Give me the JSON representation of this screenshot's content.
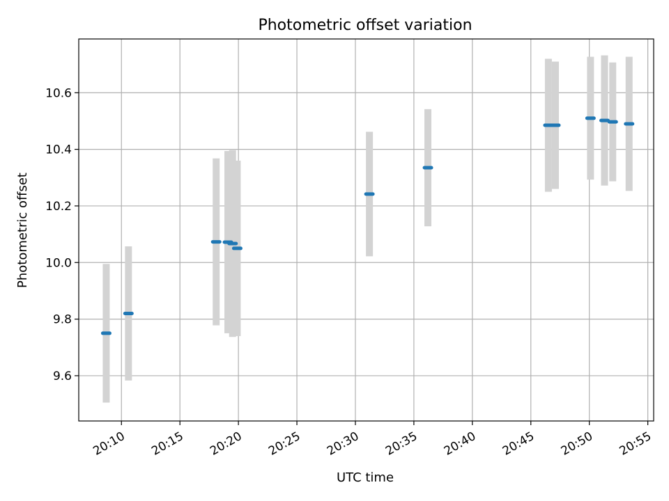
{
  "chart_data": {
    "type": "scatter",
    "title": "Photometric offset variation",
    "xlabel": "UTC time",
    "ylabel": "Photometric offset",
    "x_tick_labels": [
      "20:10",
      "20:15",
      "20:20",
      "20:25",
      "20:30",
      "20:35",
      "20:40",
      "20:45",
      "20:50",
      "20:55"
    ],
    "y_tick_labels": [
      "9.6",
      "9.8",
      "10.0",
      "10.2",
      "10.4",
      "10.6"
    ],
    "x_ticks_min": [
      10,
      15,
      20,
      25,
      30,
      35,
      40,
      45,
      50,
      55
    ],
    "y_ticks": [
      9.6,
      9.8,
      10.0,
      10.2,
      10.4,
      10.6
    ],
    "xlim_min": [
      6.35,
      55.5
    ],
    "ylim": [
      9.44,
      10.79
    ],
    "grid": true,
    "colors": {
      "points": "#1f77b4",
      "errorbars": "#d3d3d3",
      "grid": "#b0b0b0"
    },
    "points": [
      {
        "t_min": 8.7,
        "y": 9.75,
        "err": 0.245
      },
      {
        "t_min": 10.6,
        "y": 9.82,
        "err": 0.237
      },
      {
        "t_min": 18.1,
        "y": 10.073,
        "err": 0.295
      },
      {
        "t_min": 19.1,
        "y": 10.072,
        "err": 0.322
      },
      {
        "t_min": 19.5,
        "y": 10.067,
        "err": 0.33
      },
      {
        "t_min": 19.9,
        "y": 10.05,
        "err": 0.31
      },
      {
        "t_min": 31.2,
        "y": 10.242,
        "err": 0.22
      },
      {
        "t_min": 36.2,
        "y": 10.335,
        "err": 0.207
      },
      {
        "t_min": 46.5,
        "y": 10.485,
        "err": 0.235
      },
      {
        "t_min": 47.1,
        "y": 10.485,
        "err": 0.225
      },
      {
        "t_min": 50.1,
        "y": 10.51,
        "err": 0.217
      },
      {
        "t_min": 51.3,
        "y": 10.502,
        "err": 0.23
      },
      {
        "t_min": 52.0,
        "y": 10.497,
        "err": 0.21
      },
      {
        "t_min": 53.4,
        "y": 10.49,
        "err": 0.237
      }
    ]
  }
}
